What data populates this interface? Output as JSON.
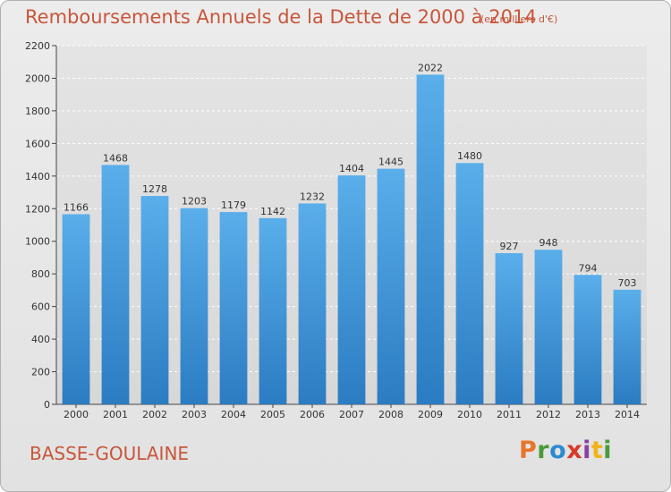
{
  "header": {
    "title": "Remboursements Annuels de la Dette de 2000 à 2014",
    "unit": "(en milliers d'€)"
  },
  "footer": {
    "commune": "BASSE-GOULAINE",
    "logo_letters": [
      "P",
      "r",
      "o",
      "x",
      "i",
      "t",
      "i"
    ],
    "logo_colors": [
      "#e8742a",
      "#4a9a3a",
      "#2e8bcf",
      "#d63a2a",
      "#8a3fa0",
      "#f2b31b",
      "#4a9a3a"
    ]
  },
  "chart_data": {
    "type": "bar",
    "title": "Remboursements Annuels de la Dette de 2000 à 2014",
    "categories": [
      "2000",
      "2001",
      "2002",
      "2003",
      "2004",
      "2005",
      "2006",
      "2007",
      "2008",
      "2009",
      "2010",
      "2011",
      "2012",
      "2013",
      "2014"
    ],
    "values": [
      1166,
      1468,
      1278,
      1203,
      1179,
      1142,
      1232,
      1404,
      1445,
      2022,
      1480,
      927,
      948,
      794,
      703
    ],
    "ylim": [
      0,
      2200
    ],
    "yticks": [
      0,
      200,
      400,
      600,
      800,
      1000,
      1200,
      1400,
      1600,
      1800,
      2000,
      2200
    ],
    "grid": true,
    "bar_color_top": "#5aaeea",
    "bar_color_bottom": "#2b7cc2"
  }
}
